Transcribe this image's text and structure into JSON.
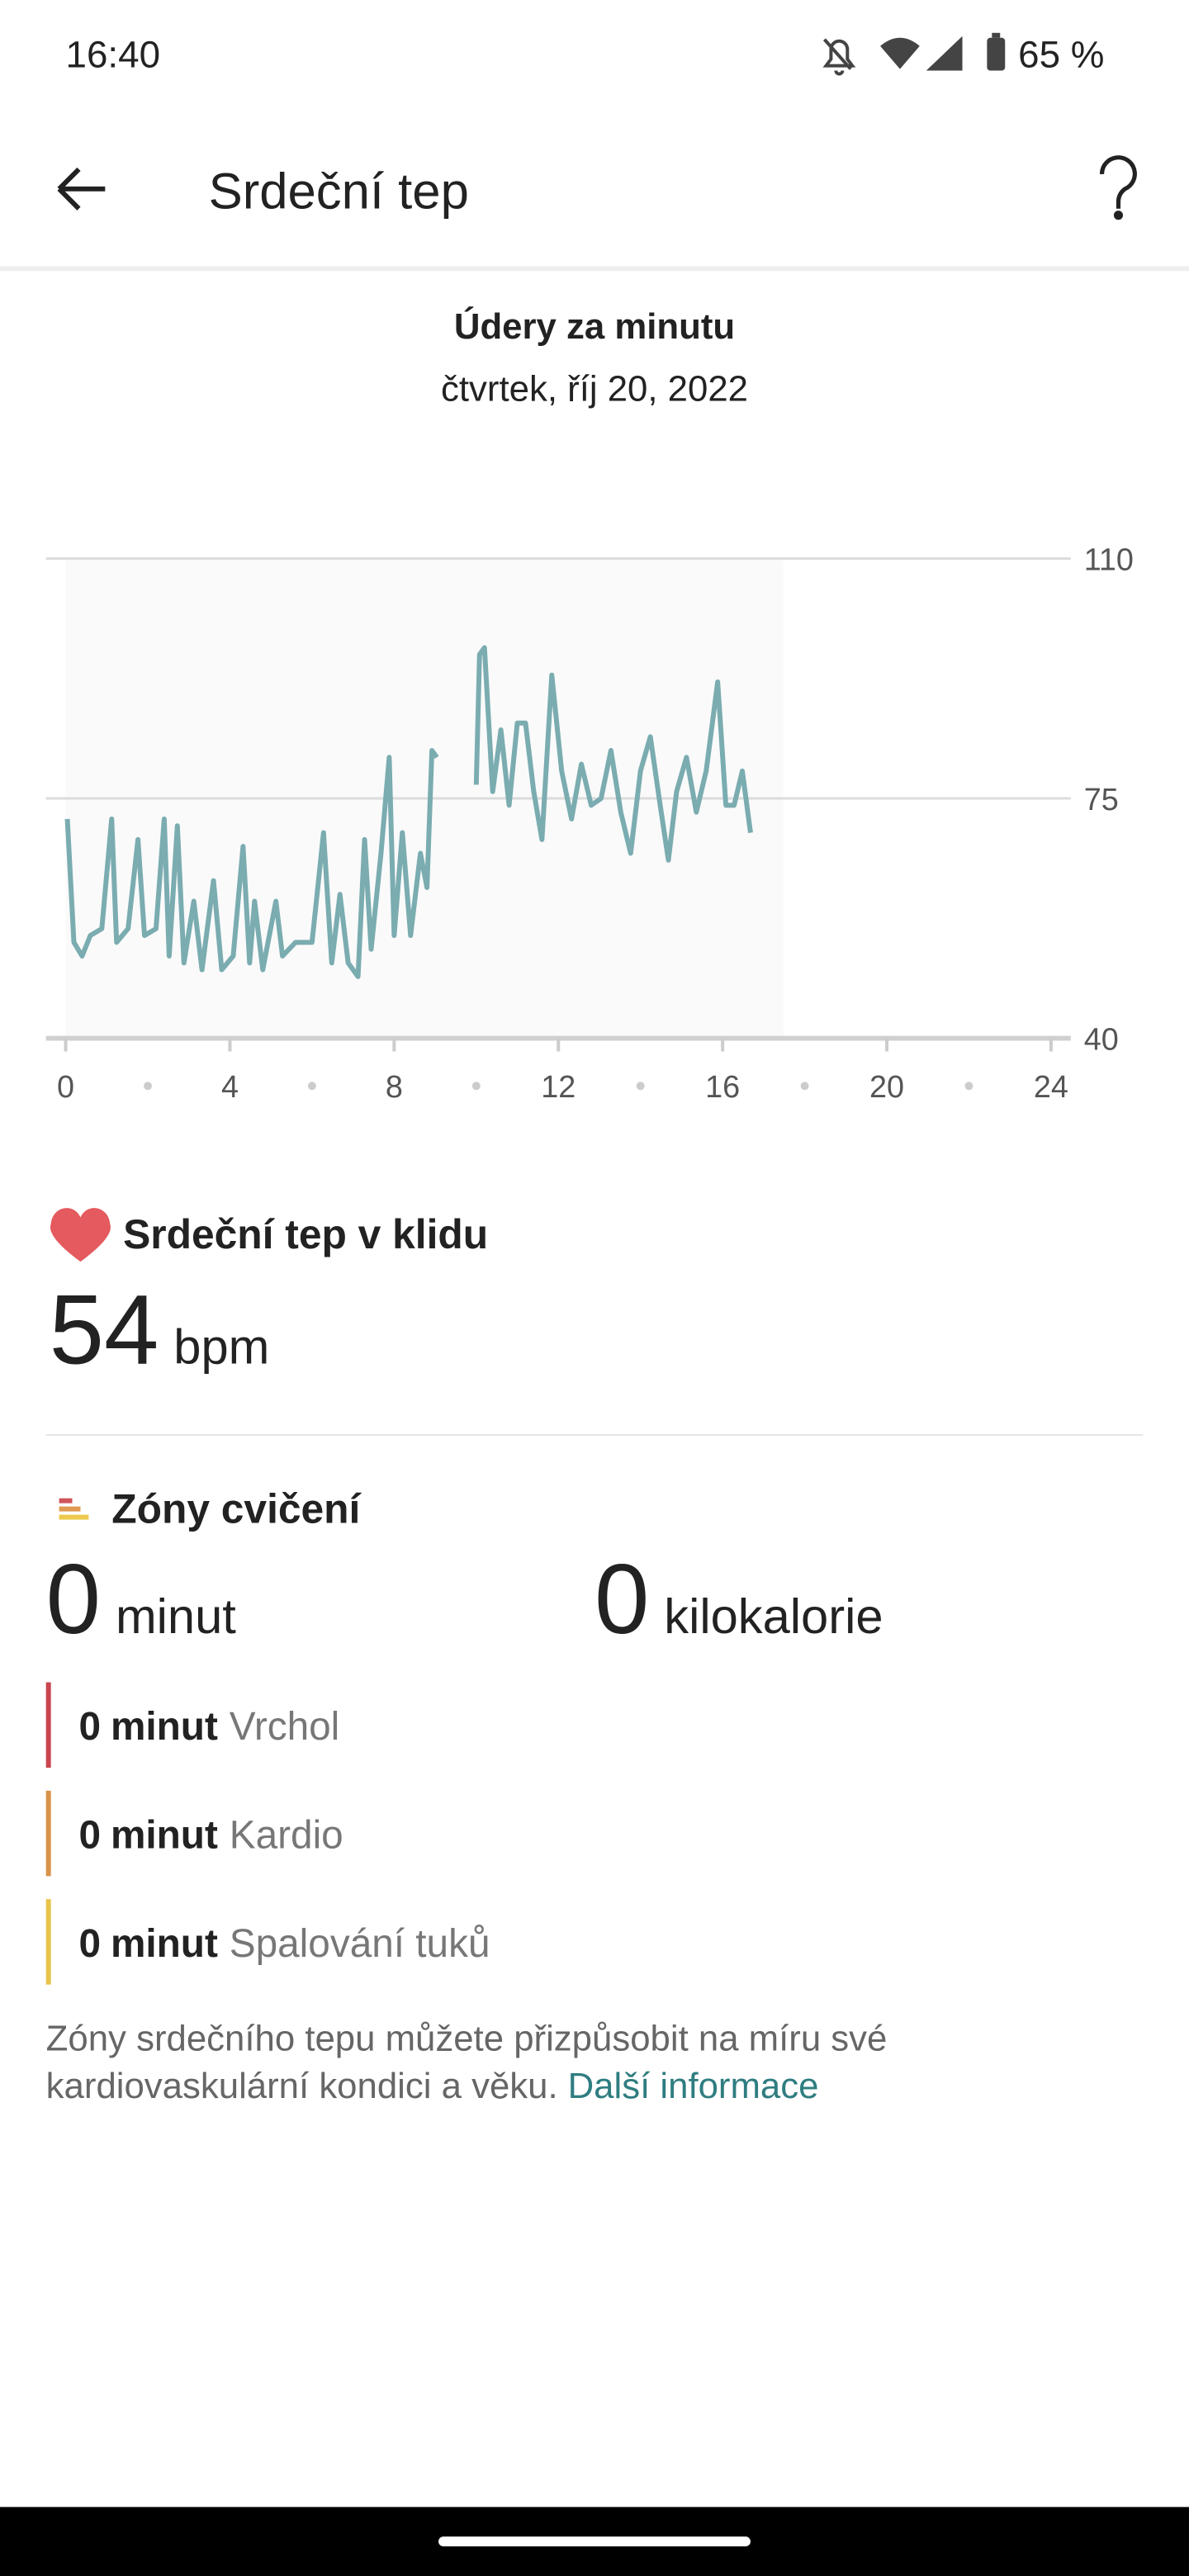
{
  "status_bar": {
    "time": "16:40",
    "battery": "65 %"
  },
  "app_bar": {
    "title": "Srdeční tep"
  },
  "chart_data": {
    "type": "line",
    "title": "Údery za minutu",
    "subtitle": "čtvrtek, říj 20, 2022",
    "x": [
      0.04,
      0.2,
      0.4,
      0.6,
      0.88,
      1.12,
      1.24,
      1.52,
      1.76,
      1.92,
      2.2,
      2.4,
      2.52,
      2.72,
      2.88,
      3.12,
      3.32,
      3.6,
      3.8,
      4.08,
      4.32,
      4.48,
      4.6,
      4.8,
      5.12,
      5.28,
      5.6,
      6,
      6.28,
      6.48,
      6.68,
      6.88,
      7.12,
      7.28,
      7.44,
      7.68,
      7.88,
      8,
      8.2,
      8.4,
      8.64,
      8.8,
      8.92,
      9.04,
      9.5,
      10,
      10.08,
      10.2,
      10.4,
      10.6,
      10.8,
      11,
      11.2,
      11.4,
      11.6,
      11.84,
      12.08,
      12.32,
      12.56,
      12.8,
      13.04,
      13.28,
      13.52,
      13.76,
      14,
      14.24,
      14.48,
      14.68,
      14.88,
      15.12,
      15.36,
      15.6,
      15.88,
      16.08,
      16.28,
      16.48,
      16.68
    ],
    "values": [
      72,
      54,
      52,
      55,
      56,
      72,
      54,
      56,
      69,
      55,
      56,
      72,
      52,
      71,
      51,
      60,
      50,
      63,
      50,
      52,
      68,
      51,
      60,
      50,
      60,
      52,
      54,
      54,
      70,
      51,
      61,
      51,
      49,
      69,
      53,
      67,
      81,
      55,
      70,
      55,
      67,
      62,
      82,
      81,
      null,
      77,
      96,
      97,
      76,
      85,
      74,
      86,
      86,
      76,
      69,
      93,
      79,
      72,
      80,
      74,
      75,
      82,
      73,
      67,
      79,
      84,
      74,
      66,
      76,
      81,
      73,
      79,
      92,
      74,
      74,
      79,
      70
    ],
    "color": "#7aacb0",
    "xlim": [
      0,
      24
    ],
    "xticks": [
      0,
      4,
      8,
      12,
      16,
      20,
      24
    ],
    "xminorticks": [
      2,
      6,
      10,
      14,
      18,
      22
    ],
    "ylim": [
      40,
      110
    ],
    "yticks": [
      40,
      75,
      110
    ],
    "grid": true
  },
  "resting": {
    "title": "Srdeční tep v klidu",
    "value": 54,
    "unit": "bpm"
  },
  "zones": {
    "title": "Zóny cvičení",
    "minutes": {
      "value": 0,
      "unit": "minut"
    },
    "calories": {
      "value": 0,
      "unit": "kilokalorie"
    },
    "rows": [
      {
        "value": 0,
        "unit": "minut",
        "name": "Vrchol"
      },
      {
        "value": 0,
        "unit": "minut",
        "name": "Kardio"
      },
      {
        "value": 0,
        "unit": "minut",
        "name": "Spalování tuků"
      }
    ],
    "note_line1": "Zóny srdečního tepu můžete přizpůsobit na míru své",
    "note_line2": "kardiovaskulární kondici a věku.",
    "link": "Další informace"
  }
}
